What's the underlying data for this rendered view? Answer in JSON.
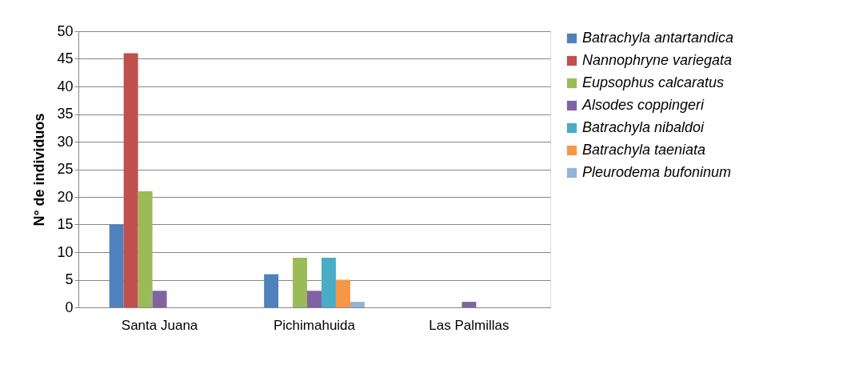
{
  "chart_data": {
    "type": "bar",
    "ylabel": "N° de individuos",
    "categories": [
      "Santa Juana",
      "Pichimahuida",
      "Las Palmillas"
    ],
    "series": [
      {
        "name": "Batrachyla antartandica",
        "color": "#4f81bd",
        "values": [
          15,
          6,
          0
        ]
      },
      {
        "name": "Nannophryne variegata",
        "color": "#c0504d",
        "values": [
          46,
          0,
          0
        ]
      },
      {
        "name": "Eupsophus calcaratus",
        "color": "#9bbb59",
        "values": [
          21,
          9,
          0
        ]
      },
      {
        "name": "Alsodes coppingeri",
        "color": "#8064a2",
        "values": [
          3,
          3,
          1
        ]
      },
      {
        "name": "Batrachyla nibaldoi",
        "color": "#4bacc6",
        "values": [
          0,
          9,
          0
        ]
      },
      {
        "name": "Batrachyla taeniata",
        "color": "#f79646",
        "values": [
          0,
          5,
          0
        ]
      },
      {
        "name": "Pleurodema bufoninum",
        "color": "#95b3d7",
        "values": [
          0,
          1,
          0
        ]
      }
    ],
    "ylim": [
      0,
      50
    ],
    "yticks": [
      0,
      5,
      10,
      15,
      20,
      25,
      30,
      35,
      40,
      45,
      50
    ],
    "grid": "y",
    "legend": "right"
  }
}
